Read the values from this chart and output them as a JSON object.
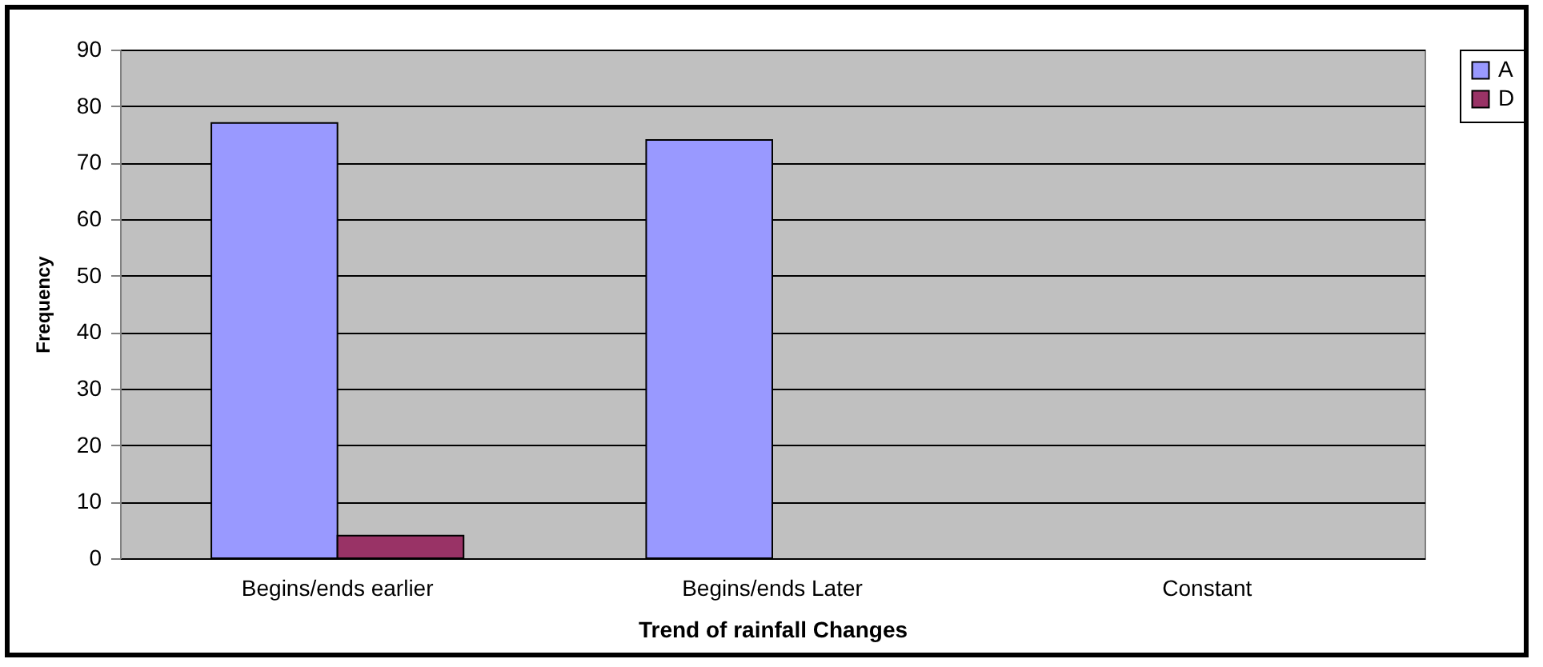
{
  "chart_data": {
    "type": "bar",
    "xlabel": "Trend of rainfall Changes",
    "ylabel": "Frequency",
    "categories": [
      "Begins/ends earlier",
      "Begins/ends Later",
      "Constant"
    ],
    "series": [
      {
        "name": "A",
        "color": "#9999ff",
        "values": [
          77,
          74,
          0
        ]
      },
      {
        "name": "D",
        "color": "#993366",
        "values": [
          4,
          0,
          0
        ]
      }
    ],
    "ylim": [
      0,
      90
    ],
    "yticks": [
      0,
      10,
      20,
      30,
      40,
      50,
      60,
      70,
      80,
      90
    ],
    "grid": "y",
    "legend": "right"
  }
}
